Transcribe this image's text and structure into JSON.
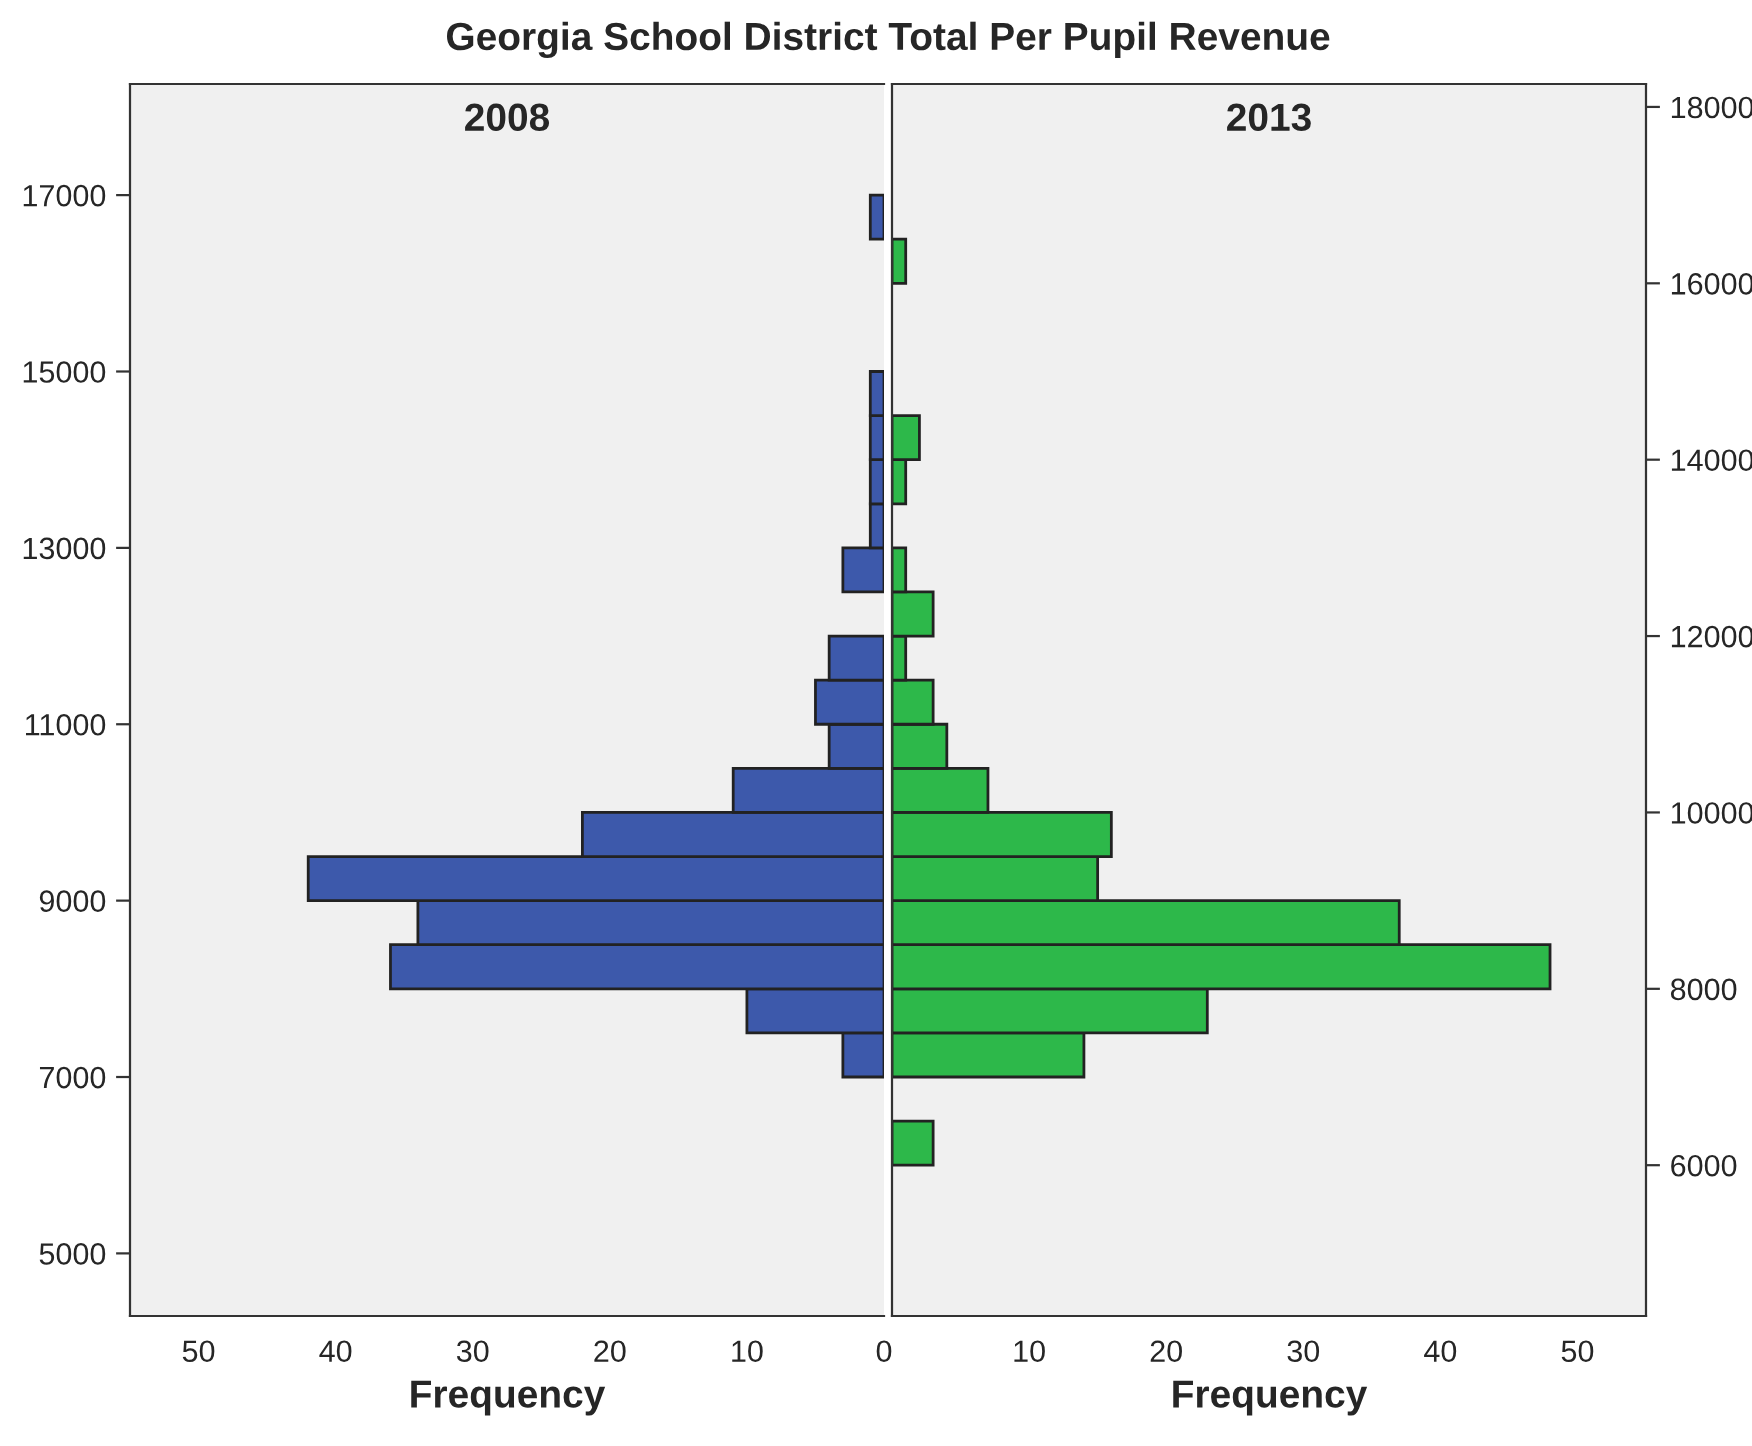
{
  "chart_data": [
    {
      "type": "histogram",
      "orientation": "horizontal",
      "title": "Georgia School District Total Per Pupil Revenue",
      "subtitle": "2008",
      "xlabel": "Frequency",
      "bins": [
        6000,
        6500,
        7000,
        7500,
        8000,
        8500,
        9000,
        9500,
        10000,
        10500,
        11000,
        11500,
        12000,
        12500,
        13000,
        13500,
        14000,
        14500,
        15000,
        15500,
        16000,
        16500,
        17000
      ],
      "values": [
        0,
        0,
        3,
        10,
        36,
        34,
        42,
        22,
        11,
        4,
        5,
        4,
        0,
        3,
        1,
        1,
        1,
        1,
        0,
        0,
        0,
        1
      ],
      "color": "#3d59ab",
      "xlim": [
        55,
        0
      ],
      "xticks": [
        50,
        40,
        30,
        20,
        10,
        0
      ],
      "ylim": [
        4290,
        18260
      ],
      "yticks": [
        5000,
        7000,
        9000,
        11000,
        13000,
        15000,
        17000
      ],
      "legend": false
    },
    {
      "type": "histogram",
      "orientation": "horizontal",
      "subtitle": "2013",
      "xlabel": "Frequency",
      "bins": [
        6000,
        6500,
        7000,
        7500,
        8000,
        8500,
        9000,
        9500,
        10000,
        10500,
        11000,
        11500,
        12000,
        12500,
        13000,
        13500,
        14000,
        14500,
        15000,
        15500,
        16000,
        16500,
        17000
      ],
      "values": [
        3,
        0,
        14,
        23,
        48,
        37,
        15,
        16,
        7,
        4,
        3,
        1,
        3,
        1,
        0,
        1,
        2,
        0,
        0,
        0,
        1,
        0
      ],
      "color": "#2db84a",
      "xlim": [
        0,
        55
      ],
      "xticks": [
        {
          "value": 0,
          "label": null
        },
        10,
        20,
        30,
        40,
        50
      ],
      "ylim": [
        4290,
        18260
      ],
      "yticks": [
        6000,
        8000,
        10000,
        12000,
        14000,
        16000,
        18000
      ],
      "legend": false
    }
  ]
}
